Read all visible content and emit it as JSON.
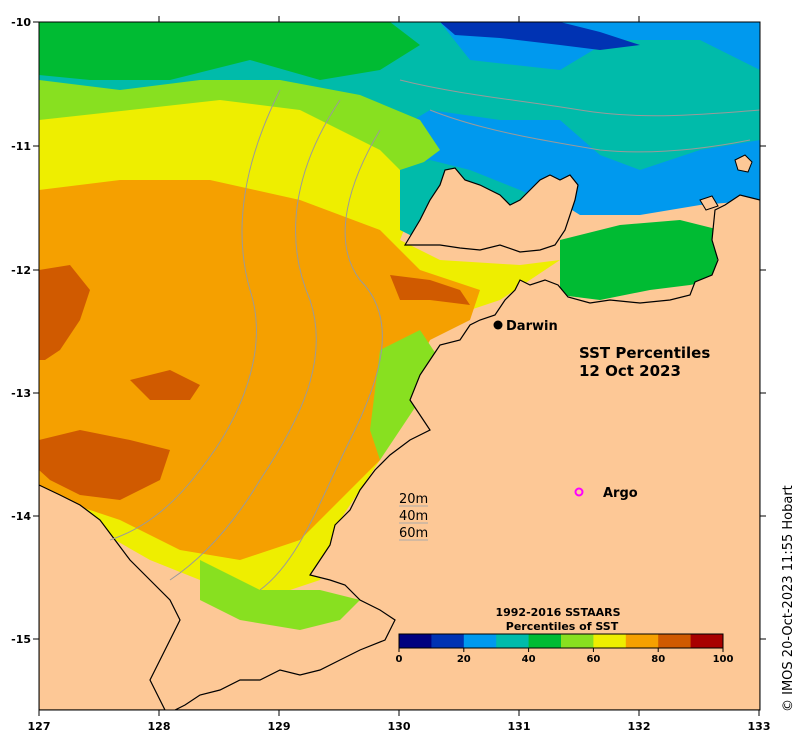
{
  "map": {
    "title_line1": "SST Percentiles",
    "title_line2": "12 Oct 2023",
    "credit": "© IMOS 20-Oct-2023 11:55 Hobart",
    "lon_ticks": [
      "127",
      "128",
      "129",
      "130",
      "131",
      "132",
      "133"
    ],
    "lat_ticks": [
      "-10",
      "-11",
      "-12",
      "-13",
      "-14",
      "-15"
    ],
    "places": [
      {
        "name": "Darwin",
        "marker": "filled-dot",
        "color": "#000000"
      },
      {
        "name": "Argo",
        "marker": "open-circle",
        "color": "#ff00ff"
      }
    ],
    "depth_contours": [
      "20m",
      "40m",
      "60m"
    ],
    "colorbar": {
      "title_line1": "1992-2016 SSTAARS",
      "title_line2": "Percentiles of SST",
      "ticks": [
        "0",
        "20",
        "40",
        "60",
        "80",
        "100"
      ],
      "colors": [
        "#00007f",
        "#0033b3",
        "#0099ee",
        "#00bbaa",
        "#00bb33",
        "#88e020",
        "#eeee00",
        "#f5a000",
        "#d05a00",
        "#a80000"
      ]
    },
    "land_color": "#fdc896"
  }
}
